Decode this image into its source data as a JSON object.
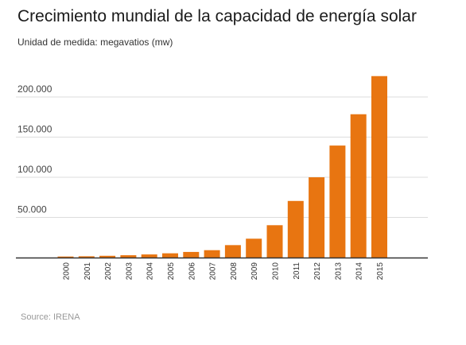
{
  "chart_data": {
    "type": "bar",
    "title": "Crecimiento mundial de la capacidad de energía solar",
    "subtitle": "Unidad de medida: megavatios (mw)",
    "categories": [
      "2000",
      "2001",
      "2002",
      "2003",
      "2004",
      "2005",
      "2006",
      "2007",
      "2008",
      "2009",
      "2010",
      "2011",
      "2012",
      "2013",
      "2014",
      "2015"
    ],
    "values": [
      1300,
      1600,
      2200,
      2900,
      3900,
      5300,
      7000,
      9200,
      15500,
      23500,
      40300,
      70500,
      100000,
      139500,
      178500,
      226000
    ],
    "ylim": [
      0,
      230000
    ],
    "yticks": [
      50000,
      100000,
      150000,
      200000
    ],
    "ytick_labels": [
      "50.000",
      "100.000",
      "150.000",
      "200.000"
    ],
    "xlabel": "",
    "ylabel": "",
    "grid": true,
    "bar_color": "#e87511",
    "grid_color": "#dddddd",
    "axis_color": "#333333",
    "source": "Source: IRENA"
  }
}
